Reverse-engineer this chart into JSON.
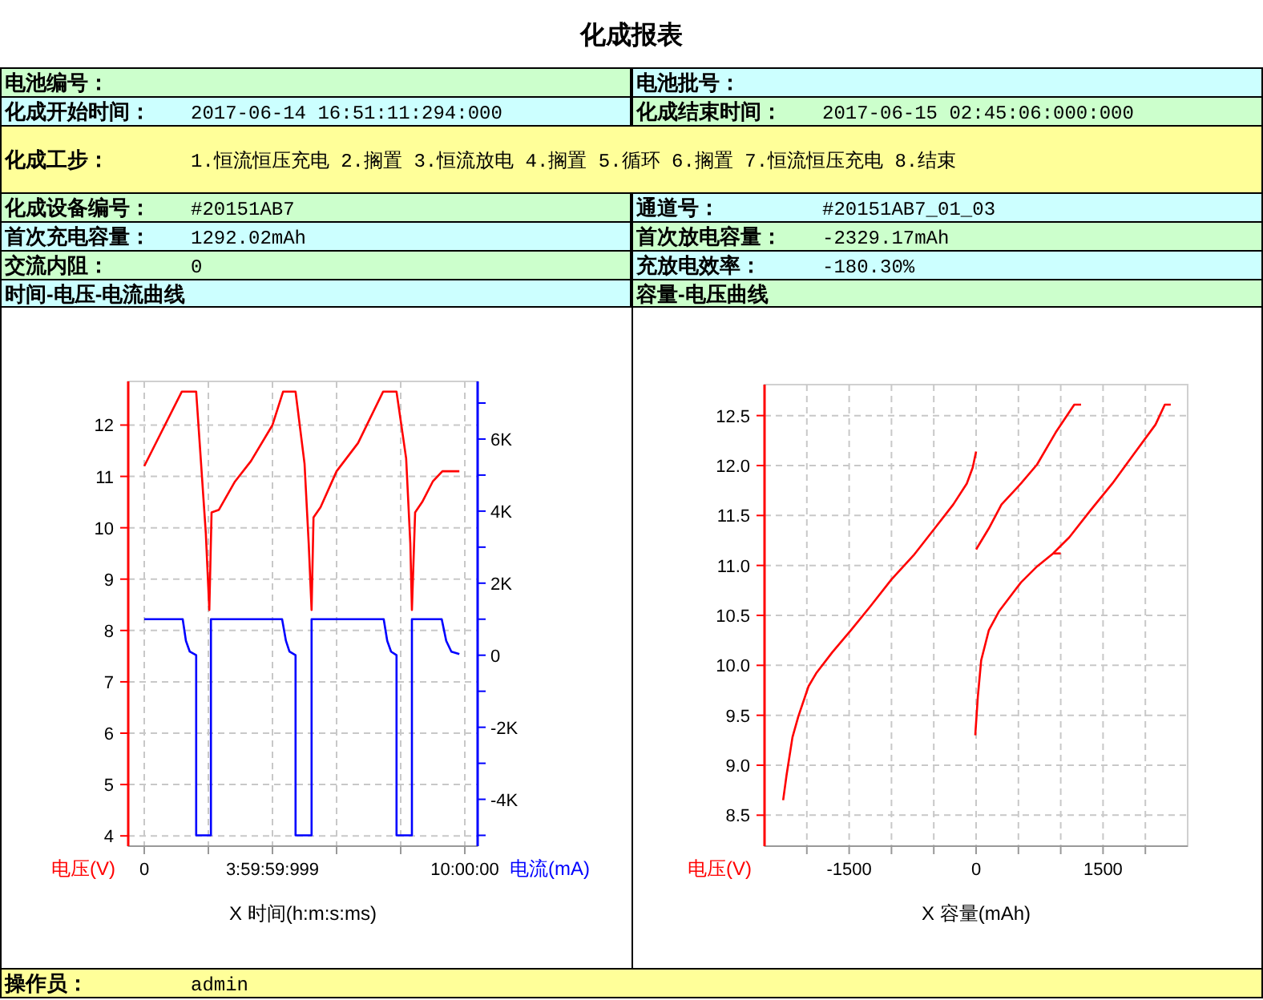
{
  "chart_data": [
    {
      "type": "other",
      "title": "化成报表",
      "annotations": [
        "电池编号：",
        "电池批号：",
        "化成开始时间：",
        "2017-06-14 16:51:11:294:000",
        "化成结束时间：",
        "2017-06-15 02:45:06:000:000",
        "化成工步：",
        "1.恒流恒压充电 2.搁置 3.恒流放电 4.搁置 5.循环 6.搁置 7.恒流恒压充电 8.结束",
        "化成设备编号：",
        "#20151AB7",
        "通道号：",
        "#20151AB7_01_03",
        "首次充电容量：",
        "1292.02mAh",
        "首次放电容量：",
        "-2329.17mAh",
        "交流内阻：",
        "0",
        "充放电效率：",
        "-180.30%",
        "操作员：",
        "admin"
      ]
    },
    {
      "type": "line",
      "title": "时间-电压-电流曲线",
      "xlabel": "X 时间(h:m:s:ms)",
      "ylabel": "电压(V)",
      "y2label": "电流(mA)",
      "xlim": [
        -0.5,
        10.4
      ],
      "xticks": [
        0,
        {
          "value": 2,
          "label": null
        },
        {
          "value": 4,
          "label": "3:59:59:999"
        },
        {
          "value": 6,
          "label": null
        },
        {
          "value": 8,
          "label": null
        },
        {
          "value": 10,
          "label": "10:00:00"
        }
      ],
      "ylim": [
        3.8,
        12.85
      ],
      "yticks": [
        4,
        5,
        6,
        7,
        8,
        9,
        10,
        11,
        12
      ],
      "y2lim": [
        -5300,
        7600
      ],
      "y2ticks": [
        {
          "value": -5000,
          "label": null
        },
        {
          "value": -4000,
          "label": "-4K"
        },
        {
          "value": -3000,
          "label": null
        },
        {
          "value": -2000,
          "label": "-2K"
        },
        {
          "value": -1000,
          "label": null
        },
        0,
        {
          "value": 1000,
          "label": null
        },
        {
          "value": 2000,
          "label": "2K"
        },
        {
          "value": 3000,
          "label": null
        },
        {
          "value": 4000,
          "label": "4K"
        },
        {
          "value": 5000,
          "label": null
        },
        {
          "value": 6000,
          "label": "6K"
        },
        {
          "value": 7000,
          "label": null
        }
      ],
      "grid": true,
      "series": [
        {
          "color": "#ff0000",
          "x": [
            0,
            1.17,
            1.62,
            1.92,
            2.03,
            2.1,
            2.33,
            2.83,
            3.33,
            4,
            4.33,
            4.72,
            5.0,
            5.13,
            5.22,
            5.28,
            5.5,
            6,
            6.67,
            7.45,
            7.87,
            8.17,
            8.3,
            8.35,
            8.45,
            8.67,
            9,
            9.3,
            9.83
          ],
          "values": [
            11.2,
            12.65,
            12.65,
            9.9,
            8.4,
            10.3,
            10.35,
            10.9,
            11.3,
            12.0,
            12.65,
            12.65,
            11.25,
            9.7,
            8.4,
            10.2,
            10.4,
            11.1,
            11.65,
            12.65,
            12.65,
            11.35,
            9.7,
            8.4,
            10.3,
            10.5,
            10.9,
            11.1,
            11.1
          ]
        },
        {
          "color": "#0000ff",
          "axis": "y2",
          "x": [
            0,
            1.2,
            1.3,
            1.42,
            1.62,
            1.62,
            2.08,
            2.08,
            4.3,
            4.42,
            4.53,
            4.72,
            4.72,
            5.22,
            5.22,
            7.47,
            7.58,
            7.7,
            7.87,
            7.87,
            8.35,
            8.35,
            9.28,
            9.42,
            9.58,
            9.83
          ],
          "values": [
            1000,
            1000,
            400,
            100,
            0,
            -5000,
            -5000,
            1000,
            1000,
            400,
            100,
            0,
            -5000,
            -5000,
            1000,
            1000,
            400,
            100,
            0,
            -5000,
            -5000,
            1000,
            1000,
            400,
            100,
            30
          ]
        }
      ]
    },
    {
      "type": "line",
      "title": "容量-电压曲线",
      "xlabel": "X 容量(mAh)",
      "ylabel": "电压(V)",
      "xlim": [
        -2500,
        2500
      ],
      "xticks": [
        {
          "value": -2000,
          "label": null
        },
        -1500,
        {
          "value": -1000,
          "label": null
        },
        {
          "value": -500,
          "label": null
        },
        0,
        {
          "value": 500,
          "label": null
        },
        {
          "value": 1000,
          "label": null
        },
        1500,
        {
          "value": 2000,
          "label": null
        }
      ],
      "ylim": [
        8.19,
        12.81
      ],
      "yticks": [
        8.5,
        {
          "value": 9,
          "label": "9.0"
        },
        9.5,
        {
          "value": 10,
          "label": "10.0"
        },
        10.5,
        {
          "value": 11,
          "label": "11.0"
        },
        11.5,
        {
          "value": 12,
          "label": "12.0"
        },
        12.5
      ],
      "grid": true,
      "series": [
        {
          "color": "#ff0000",
          "x": [
            -2280,
            -2240,
            -2170,
            -2100,
            -1980,
            -1890,
            -1700,
            -1480,
            -1250,
            -1000,
            -740,
            -490,
            -270,
            -110,
            -40,
            0
          ],
          "values": [
            8.65,
            8.9,
            9.28,
            9.49,
            9.79,
            9.92,
            10.13,
            10.35,
            10.59,
            10.86,
            11.1,
            11.37,
            11.61,
            11.82,
            11.98,
            12.14
          ]
        },
        {
          "color": "#ff0000",
          "x": [
            0,
            150,
            300,
            530,
            720,
            940,
            1160,
            1240
          ],
          "values": [
            11.16,
            11.37,
            11.61,
            11.82,
            12.01,
            12.33,
            12.61,
            12.61
          ]
        },
        {
          "color": "#ff0000",
          "x": [
            -10,
            20,
            60,
            150,
            270,
            530,
            720,
            910,
            1100,
            1350,
            1610,
            1860,
            2120,
            2230,
            2300
          ],
          "values": [
            9.3,
            9.68,
            10.05,
            10.35,
            10.54,
            10.83,
            10.99,
            11.12,
            11.28,
            11.55,
            11.82,
            12.11,
            12.41,
            12.61,
            12.61
          ]
        },
        {
          "color": "#ff0000",
          "x": [
            910,
            1000
          ],
          "values": [
            11.12,
            11.12
          ]
        }
      ]
    }
  ]
}
